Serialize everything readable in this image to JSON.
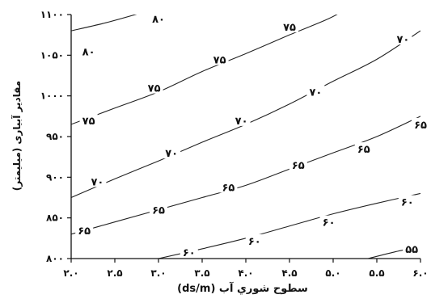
{
  "chart_data": {
    "type": "line",
    "title": "",
    "xlabel": "سطوح شوري آب (ds/m)",
    "ylabel": "مقادیر آبیاری (میلیمتر)",
    "xlim": [
      2.0,
      6.0
    ],
    "ylim": [
      800,
      1100
    ],
    "x_ticks": [
      2.0,
      2.5,
      3.0,
      3.5,
      4.0,
      4.5,
      5.0,
      5.5,
      6.0
    ],
    "x_tick_labels": [
      "۲.۰",
      "۲.۵",
      "۳.۰",
      "۳.۵",
      "۴.۰",
      "۴.۵",
      "۵.۰",
      "۵.۵",
      "۶.۰"
    ],
    "y_ticks": [
      800,
      850,
      900,
      950,
      1000,
      1050,
      1100
    ],
    "y_tick_labels": [
      "۸۰۰",
      "۸۵۰",
      "۹۰۰",
      "۹۵۰",
      "۱۰۰۰",
      "۱۰۵۰",
      "۱۱۰۰"
    ],
    "grid": false,
    "series": [
      {
        "level": 80,
        "label": "۸۰",
        "x": [
          2.0,
          2.4,
          2.8,
          3.2,
          3.35
        ],
        "y": [
          1080,
          1090,
          1102,
          1115,
          1120
        ]
      },
      {
        "level": 75,
        "label": "۷۵",
        "x": [
          2.0,
          2.5,
          3.0,
          3.5,
          4.0,
          4.5,
          4.95,
          5.2
        ],
        "y": [
          965,
          985,
          1005,
          1030,
          1052,
          1075,
          1095,
          1110
        ]
      },
      {
        "level": 70,
        "label": "۷۰",
        "x": [
          2.0,
          2.5,
          3.0,
          3.5,
          4.0,
          4.5,
          5.0,
          5.5,
          6.0
        ],
        "y": [
          875,
          898,
          920,
          943,
          965,
          990,
          1018,
          1045,
          1080
        ]
      },
      {
        "level": 65,
        "label": "۶۵",
        "x": [
          2.0,
          2.5,
          3.0,
          3.5,
          4.0,
          4.5,
          5.0,
          5.5,
          6.0
        ],
        "y": [
          830,
          845,
          860,
          875,
          890,
          910,
          930,
          950,
          975
        ]
      },
      {
        "level": 60,
        "label": "۶۰",
        "x": [
          3.0,
          3.5,
          4.0,
          4.5,
          5.0,
          5.5,
          6.0
        ],
        "y": [
          800,
          812,
          825,
          840,
          855,
          868,
          880
        ]
      },
      {
        "level": 55,
        "label": "۵۵",
        "x": [
          5.4,
          5.7,
          6.0
        ],
        "y": [
          800,
          808,
          815
        ]
      }
    ],
    "contour_labels": [
      {
        "label": "۸۰",
        "x": 2.2,
        "y": 1055
      },
      {
        "label": "۸۰",
        "x": 3.0,
        "y": 1095
      },
      {
        "label": "۷۵",
        "x": 2.2,
        "y": 970
      },
      {
        "label": "۷۵",
        "x": 2.95,
        "y": 1010
      },
      {
        "label": "۷۵",
        "x": 3.7,
        "y": 1045
      },
      {
        "label": "۷۵",
        "x": 4.5,
        "y": 1085
      },
      {
        "label": "۷۰",
        "x": 2.3,
        "y": 895
      },
      {
        "label": "۷۰",
        "x": 3.15,
        "y": 930
      },
      {
        "label": "۷۰",
        "x": 3.95,
        "y": 970
      },
      {
        "label": "۷۰",
        "x": 4.8,
        "y": 1005
      },
      {
        "label": "۷۰",
        "x": 5.8,
        "y": 1070
      },
      {
        "label": "۶۵",
        "x": 2.15,
        "y": 835
      },
      {
        "label": "۶۵",
        "x": 3.0,
        "y": 860
      },
      {
        "label": "۶۵",
        "x": 3.8,
        "y": 888
      },
      {
        "label": "۶۵",
        "x": 4.6,
        "y": 915
      },
      {
        "label": "۶۵",
        "x": 5.35,
        "y": 935
      },
      {
        "label": "۶۵",
        "x": 6.0,
        "y": 965
      },
      {
        "label": "۶۰",
        "x": 3.35,
        "y": 808
      },
      {
        "label": "۶۰",
        "x": 4.1,
        "y": 822
      },
      {
        "label": "۶۰",
        "x": 4.95,
        "y": 845
      },
      {
        "label": "۶۰",
        "x": 5.85,
        "y": 870
      },
      {
        "label": "۵۵",
        "x": 5.9,
        "y": 812
      }
    ]
  }
}
